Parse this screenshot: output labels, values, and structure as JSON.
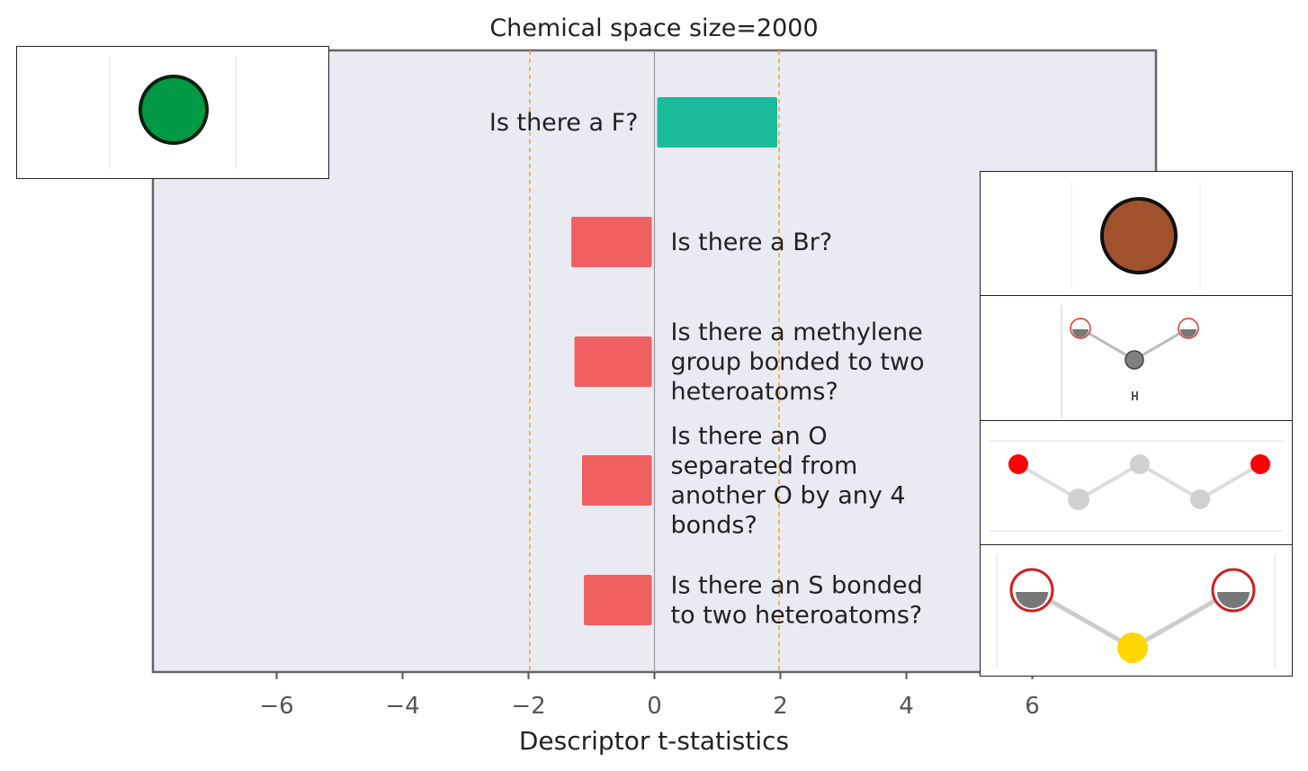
{
  "chart_data": {
    "type": "bar",
    "orientation": "horizontal",
    "title": "Chemical space size=2000",
    "xlabel": "Descriptor t-statistics",
    "ylabel": "",
    "xlim": [
      -8,
      8
    ],
    "xticks": [
      -6,
      -4,
      -2,
      0,
      2,
      4,
      6
    ],
    "xtick_labels": [
      "−6",
      "−4",
      "−2",
      "0",
      "2",
      "4",
      "6"
    ],
    "reference_lines": [
      -1.98,
      1.98
    ],
    "grid": false,
    "categories": [
      "Is there a F?",
      "Is there a Br?",
      "Is there a methylene group bonded to two heteroatoms?",
      "Is there an O separated from another O by any 4 bonds?",
      "Is there an S bonded to two heteroatoms?"
    ],
    "category_lines": [
      [
        "Is there a F?"
      ],
      [
        "Is there a Br?"
      ],
      [
        "Is there a methylene",
        "group bonded to two",
        "heteroatoms?"
      ],
      [
        "Is there an O",
        "separated from",
        "another O by any 4",
        "bonds?"
      ],
      [
        "Is there an S bonded",
        "to two heteroatoms?"
      ]
    ],
    "values": [
      1.95,
      -1.32,
      -1.27,
      -1.15,
      -1.12
    ],
    "colors": {
      "positive": "#1abc9c",
      "negative": "#f06060",
      "plot_background": "#eaeaf2",
      "reference_line": "#f5a623"
    },
    "insets": [
      {
        "category_index": 0,
        "depicts": "fluorine-atom",
        "atom_color": "#009944"
      },
      {
        "category_index": 1,
        "depicts": "bromine-atom",
        "atom_color": "#a0522d"
      },
      {
        "category_index": 2,
        "depicts": "methylene-fragment"
      },
      {
        "category_index": 3,
        "depicts": "oxygen-oxygen-chain"
      },
      {
        "category_index": 4,
        "depicts": "sulfur-fragment"
      }
    ]
  }
}
